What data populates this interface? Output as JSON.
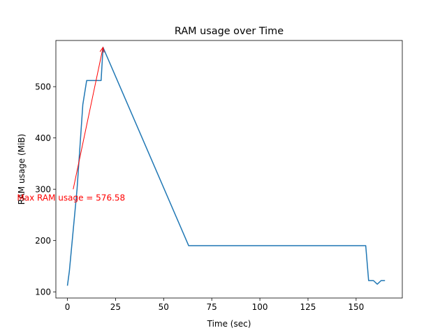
{
  "chart_data": {
    "type": "line",
    "title": "RAM usage over Time",
    "xlabel": "Time (sec)",
    "ylabel": "RAM usage (MiB)",
    "xlim": [
      -6,
      174
    ],
    "ylim": [
      88,
      590
    ],
    "xticks": [
      0,
      25,
      50,
      75,
      100,
      125,
      150
    ],
    "yticks": [
      100,
      200,
      300,
      400,
      500
    ],
    "grid": false,
    "series": [
      {
        "color": "#1f77b4",
        "points": [
          [
            0,
            112
          ],
          [
            1,
            140
          ],
          [
            3,
            220
          ],
          [
            5,
            300
          ],
          [
            8,
            465
          ],
          [
            10,
            512
          ],
          [
            15,
            512
          ],
          [
            17.5,
            512
          ],
          [
            18.5,
            576.58
          ],
          [
            63,
            190
          ],
          [
            155,
            190
          ],
          [
            156.5,
            122
          ],
          [
            159,
            122
          ],
          [
            161,
            115
          ],
          [
            163,
            122
          ],
          [
            165,
            122
          ]
        ]
      }
    ],
    "annotation": {
      "text": "Max RAM usage = 576.58",
      "color": "#ff0000",
      "text_pos": [
        3,
        300
      ],
      "arrow_target": [
        18.5,
        576.58
      ]
    }
  }
}
